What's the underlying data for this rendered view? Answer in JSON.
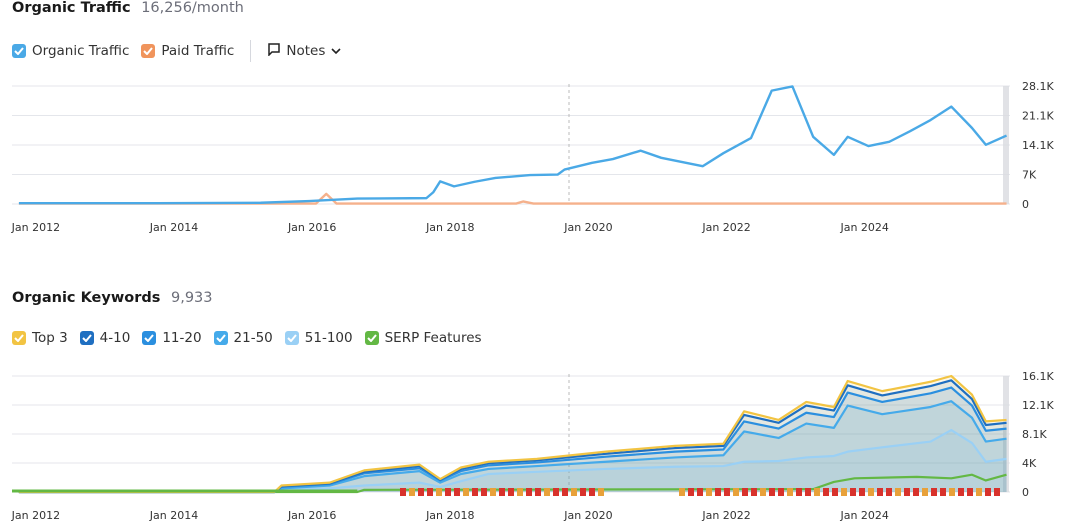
{
  "traffic": {
    "title": "Organic Traffic",
    "value": "16,256/month",
    "legend": [
      {
        "label": "Organic Traffic",
        "color": "#4aa9e6"
      },
      {
        "label": "Paid Traffic",
        "color": "#f0945c"
      }
    ],
    "notes_label": "Notes",
    "chart_data": {
      "type": "line",
      "y_ticks": [
        "28.1K",
        "21.1K",
        "14.1K",
        "7K",
        "0"
      ],
      "x_ticks": [
        "Jan 2012",
        "Jan 2014",
        "Jan 2016",
        "Jan 2018",
        "Jan 2020",
        "Jan 2022",
        "Jan 2024"
      ],
      "ylim": [
        0,
        28100
      ],
      "series": [
        {
          "name": "Organic Traffic",
          "color": "#4aa9e6",
          "points": [
            [
              2012.0,
              200
            ],
            [
              2014.0,
              200
            ],
            [
              2015.5,
              300
            ],
            [
              2016.2,
              700
            ],
            [
              2016.9,
              1300
            ],
            [
              2017.9,
              1400
            ],
            [
              2018.0,
              2800
            ],
            [
              2018.1,
              5400
            ],
            [
              2018.3,
              4200
            ],
            [
              2018.6,
              5300
            ],
            [
              2018.9,
              6200
            ],
            [
              2019.4,
              6900
            ],
            [
              2019.8,
              7000
            ],
            [
              2019.9,
              8200
            ],
            [
              2020.3,
              9800
            ],
            [
              2020.6,
              10700
            ],
            [
              2021.0,
              12700
            ],
            [
              2021.3,
              11000
            ],
            [
              2021.9,
              9000
            ],
            [
              2022.2,
              12100
            ],
            [
              2022.6,
              15700
            ],
            [
              2022.9,
              27000
            ],
            [
              2023.2,
              28000
            ],
            [
              2023.5,
              16000
            ],
            [
              2023.8,
              11700
            ],
            [
              2024.0,
              16000
            ],
            [
              2024.3,
              13800
            ],
            [
              2024.6,
              14800
            ],
            [
              2024.9,
              17300
            ],
            [
              2025.2,
              20000
            ],
            [
              2025.5,
              23200
            ],
            [
              2025.8,
              18100
            ],
            [
              2026.0,
              14100
            ],
            [
              2026.3,
              16300
            ]
          ]
        },
        {
          "name": "Paid Traffic",
          "color": "#f5b18c",
          "points": [
            [
              2012.0,
              100
            ],
            [
              2016.3,
              100
            ],
            [
              2016.45,
              2400
            ],
            [
              2016.6,
              100
            ],
            [
              2019.2,
              100
            ],
            [
              2019.3,
              600
            ],
            [
              2019.45,
              100
            ],
            [
              2026.3,
              100
            ]
          ]
        }
      ]
    }
  },
  "keywords": {
    "title": "Organic Keywords",
    "value": "9,933",
    "legend": [
      {
        "label": "Top 3",
        "color": "#f2c443"
      },
      {
        "label": "4-10",
        "color": "#1f6fc1"
      },
      {
        "label": "11-20",
        "color": "#2b8fdf"
      },
      {
        "label": "21-50",
        "color": "#45aaea"
      },
      {
        "label": "51-100",
        "color": "#9ad0f5"
      },
      {
        "label": "SERP Features",
        "color": "#63b844"
      }
    ],
    "chart_data": {
      "type": "area",
      "y_ticks": [
        "16.1K",
        "12.1K",
        "8.1K",
        "4K",
        "0"
      ],
      "x_ticks": [
        "Jan 2012",
        "Jan 2014",
        "Jan 2016",
        "Jan 2018",
        "Jan 2020",
        "Jan 2022",
        "Jan 2024"
      ],
      "ylim": [
        0,
        16100
      ],
      "series": [
        {
          "name": "Top 3",
          "color": "#f2c443",
          "points": [
            [
              2012,
              0
            ],
            [
              2015.7,
              0
            ],
            [
              2015.8,
              900
            ],
            [
              2016.5,
              1300
            ],
            [
              2017,
              3000
            ],
            [
              2017.8,
              3800
            ],
            [
              2018.1,
              1800
            ],
            [
              2018.4,
              3400
            ],
            [
              2018.8,
              4200
            ],
            [
              2019.5,
              4600
            ],
            [
              2020.5,
              5600
            ],
            [
              2021.5,
              6400
            ],
            [
              2022.2,
              6700
            ],
            [
              2022.5,
              11200
            ],
            [
              2023.0,
              10000
            ],
            [
              2023.4,
              12500
            ],
            [
              2023.8,
              11800
            ],
            [
              2024.0,
              15400
            ],
            [
              2024.5,
              14000
            ],
            [
              2025.2,
              15300
            ],
            [
              2025.5,
              16100
            ],
            [
              2025.8,
              13500
            ],
            [
              2026.0,
              9800
            ],
            [
              2026.3,
              10000
            ]
          ]
        },
        {
          "name": "4-10",
          "color": "#1f6fc1",
          "points": [
            [
              2012,
              0
            ],
            [
              2015.7,
              0
            ],
            [
              2015.8,
              800
            ],
            [
              2016.5,
              1200
            ],
            [
              2017,
              2800
            ],
            [
              2017.8,
              3600
            ],
            [
              2018.1,
              1700
            ],
            [
              2018.4,
              3200
            ],
            [
              2018.8,
              4000
            ],
            [
              2019.5,
              4400
            ],
            [
              2020.5,
              5300
            ],
            [
              2021.5,
              6100
            ],
            [
              2022.2,
              6400
            ],
            [
              2022.5,
              10700
            ],
            [
              2023.0,
              9600
            ],
            [
              2023.4,
              12000
            ],
            [
              2023.8,
              11300
            ],
            [
              2024.0,
              14800
            ],
            [
              2024.5,
              13400
            ],
            [
              2025.2,
              14700
            ],
            [
              2025.5,
              15500
            ],
            [
              2025.8,
              12900
            ],
            [
              2026.0,
              9300
            ],
            [
              2026.3,
              9600
            ]
          ]
        },
        {
          "name": "11-20",
          "color": "#2b8fdf",
          "points": [
            [
              2012,
              0
            ],
            [
              2015.7,
              0
            ],
            [
              2015.8,
              700
            ],
            [
              2016.5,
              1100
            ],
            [
              2017,
              2600
            ],
            [
              2017.8,
              3300
            ],
            [
              2018.1,
              1600
            ],
            [
              2018.4,
              2900
            ],
            [
              2018.8,
              3700
            ],
            [
              2019.5,
              4100
            ],
            [
              2020.5,
              4900
            ],
            [
              2021.5,
              5600
            ],
            [
              2022.2,
              5900
            ],
            [
              2022.5,
              9800
            ],
            [
              2023.0,
              8800
            ],
            [
              2023.4,
              11000
            ],
            [
              2023.8,
              10400
            ],
            [
              2024.0,
              13800
            ],
            [
              2024.5,
              12500
            ],
            [
              2025.2,
              13700
            ],
            [
              2025.5,
              14500
            ],
            [
              2025.8,
              12000
            ],
            [
              2026.0,
              8500
            ],
            [
              2026.3,
              8800
            ]
          ]
        },
        {
          "name": "21-50",
          "color": "#45aaea",
          "points": [
            [
              2012,
              0
            ],
            [
              2015.7,
              0
            ],
            [
              2015.8,
              500
            ],
            [
              2016.5,
              900
            ],
            [
              2017,
              2200
            ],
            [
              2017.8,
              2900
            ],
            [
              2018.1,
              1300
            ],
            [
              2018.4,
              2500
            ],
            [
              2018.8,
              3200
            ],
            [
              2019.5,
              3600
            ],
            [
              2020.5,
              4200
            ],
            [
              2021.5,
              4800
            ],
            [
              2022.2,
              5100
            ],
            [
              2022.5,
              8400
            ],
            [
              2023.0,
              7500
            ],
            [
              2023.4,
              9500
            ],
            [
              2023.8,
              8900
            ],
            [
              2024.0,
              12000
            ],
            [
              2024.5,
              10800
            ],
            [
              2025.2,
              11800
            ],
            [
              2025.5,
              12600
            ],
            [
              2025.8,
              10300
            ],
            [
              2026.0,
              7000
            ],
            [
              2026.3,
              7400
            ]
          ]
        },
        {
          "name": "51-100",
          "color": "#9ad0f5",
          "points": [
            [
              2012,
              0
            ],
            [
              2015.7,
              0
            ],
            [
              2015.8,
              300
            ],
            [
              2016.5,
              500
            ],
            [
              2017,
              900
            ],
            [
              2017.8,
              1300
            ],
            [
              2018.1,
              700
            ],
            [
              2018.4,
              1500
            ],
            [
              2018.8,
              2500
            ],
            [
              2019.5,
              2800
            ],
            [
              2020.5,
              3200
            ],
            [
              2021.5,
              3500
            ],
            [
              2022.2,
              3600
            ],
            [
              2022.5,
              4200
            ],
            [
              2023.0,
              4300
            ],
            [
              2023.4,
              4800
            ],
            [
              2023.8,
              5000
            ],
            [
              2024.0,
              5600
            ],
            [
              2024.5,
              6200
            ],
            [
              2025.2,
              7000
            ],
            [
              2025.5,
              8600
            ],
            [
              2025.8,
              6800
            ],
            [
              2026.0,
              4200
            ],
            [
              2026.3,
              4600
            ]
          ]
        },
        {
          "name": "SERP Features",
          "color": "#63b844",
          "points": [
            [
              2012,
              0
            ],
            [
              2016.9,
              0
            ],
            [
              2017.0,
              300
            ],
            [
              2023.5,
              400
            ],
            [
              2023.8,
              1400
            ],
            [
              2024.1,
              1900
            ],
            [
              2025.0,
              2100
            ],
            [
              2025.5,
              1900
            ],
            [
              2025.8,
              2400
            ],
            [
              2026.0,
              1600
            ],
            [
              2026.3,
              2400
            ]
          ]
        }
      ]
    }
  }
}
